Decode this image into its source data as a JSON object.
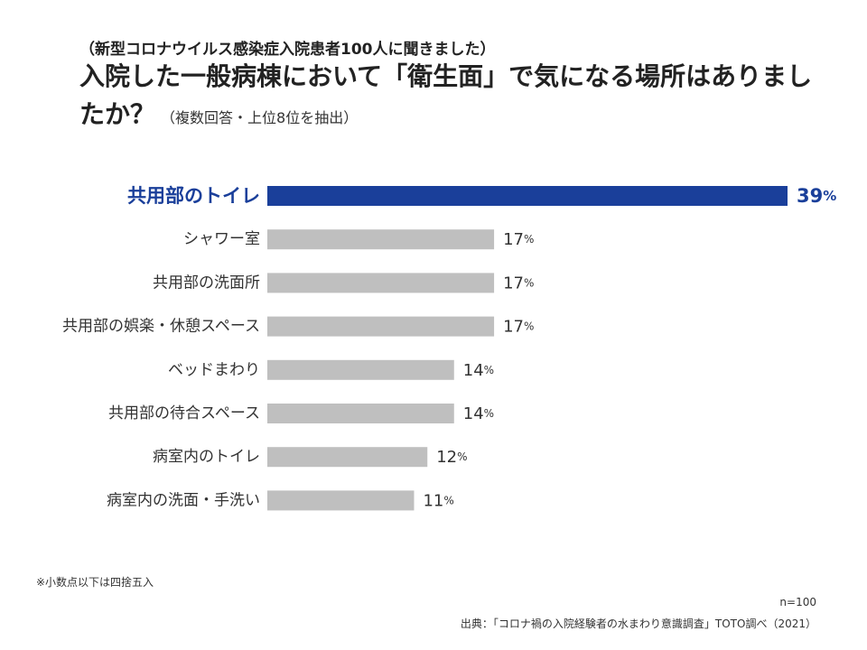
{
  "header": {
    "subtitle": "（新型コロナウイルス感染症入院患者100人に聞きました）",
    "title": "入院した一般病棟において「衛生面」で気になる場所はありましたか？",
    "title_note": "（複数回答・上位8位を抽出）"
  },
  "chart_data": {
    "type": "bar",
    "orientation": "horizontal",
    "categories": [
      "共用部のトイレ",
      "シャワー室",
      "共用部の洗面所",
      "共用部の娯楽・休憩スペース",
      "ベッドまわり",
      "共用部の待合スペース",
      "病室内のトイレ",
      "病室内の洗面・手洗い"
    ],
    "values": [
      39,
      17,
      17,
      17,
      14,
      14,
      12,
      11
    ],
    "value_suffix": "%",
    "highlight_index": 0,
    "xlim": [
      0,
      39
    ],
    "grid": false,
    "colors": {
      "highlight": "#1a3f9a",
      "bar": "#bfbfbf"
    }
  },
  "footer": {
    "rounding_note": "※小数点以下は四捨五入",
    "sample_size": "n=100",
    "source": "出典：「コロナ禍の入院経験者の水まわり意識調査」TOTO調べ（2021）"
  }
}
